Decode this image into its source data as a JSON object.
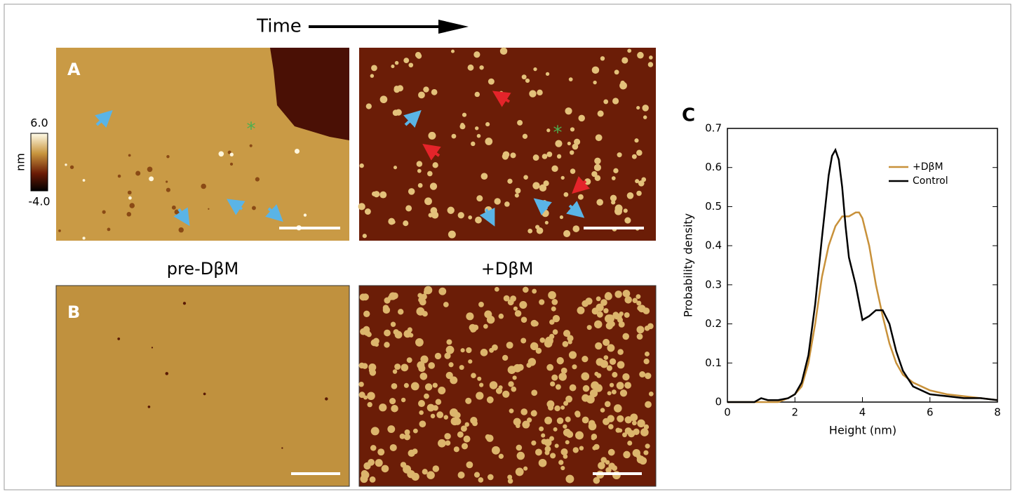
{
  "header": {
    "time_label": "Time"
  },
  "panels": {
    "a": {
      "label": "A"
    },
    "b": {
      "label": "B",
      "left_title": "pre-DβM",
      "right_title": "+DβM"
    },
    "c": {
      "label": "C"
    }
  },
  "colorbar": {
    "max_label": "6.0",
    "min_label": "-4.0",
    "unit": "nm"
  },
  "chart_data": {
    "type": "line",
    "x_label": "Height (nm)",
    "y_label": "Probability density",
    "xlim": [
      0,
      8
    ],
    "xticks": [
      0,
      2,
      4,
      6,
      8
    ],
    "ylim": [
      0,
      0.7
    ],
    "yticks": [
      0,
      0.1,
      0.2,
      0.3,
      0.4,
      0.5,
      0.6,
      0.7
    ],
    "legend": "upper right",
    "series": [
      {
        "name": "+DβM",
        "color": "#c8913a",
        "x": [
          0,
          1.5,
          1.8,
          2,
          2.2,
          2.4,
          2.6,
          2.8,
          3,
          3.2,
          3.4,
          3.6,
          3.8,
          3.9,
          4,
          4.2,
          4.4,
          4.6,
          4.8,
          5,
          5.2,
          5.5,
          6,
          6.5,
          7,
          7.5,
          8
        ],
        "values": [
          0,
          0,
          0.01,
          0.02,
          0.04,
          0.1,
          0.2,
          0.32,
          0.4,
          0.45,
          0.475,
          0.475,
          0.485,
          0.485,
          0.47,
          0.4,
          0.3,
          0.22,
          0.15,
          0.1,
          0.07,
          0.05,
          0.03,
          0.02,
          0.015,
          0.01,
          0.005
        ]
      },
      {
        "name": "Control",
        "color": "#000000",
        "x": [
          0,
          0.8,
          1,
          1.2,
          1.5,
          1.8,
          2,
          2.2,
          2.4,
          2.6,
          2.8,
          3,
          3.1,
          3.2,
          3.3,
          3.4,
          3.5,
          3.6,
          3.8,
          4,
          4.2,
          4.4,
          4.6,
          4.8,
          5,
          5.2,
          5.5,
          6,
          6.5,
          7,
          7.5,
          8
        ],
        "values": [
          0,
          0,
          0.01,
          0.005,
          0.005,
          0.01,
          0.02,
          0.05,
          0.12,
          0.25,
          0.42,
          0.58,
          0.63,
          0.645,
          0.62,
          0.55,
          0.45,
          0.37,
          0.3,
          0.21,
          0.22,
          0.235,
          0.235,
          0.2,
          0.13,
          0.08,
          0.04,
          0.02,
          0.015,
          0.01,
          0.01,
          0.005
        ]
      }
    ]
  }
}
